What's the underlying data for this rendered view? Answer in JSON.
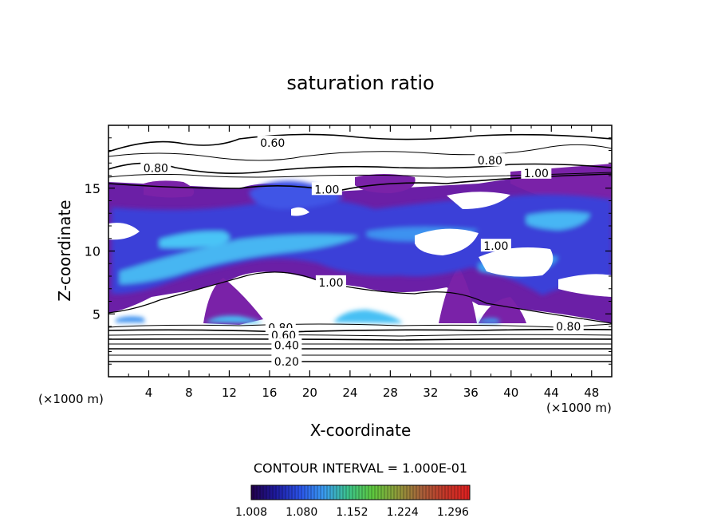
{
  "chart_data": {
    "type": "heatmap",
    "title": "saturation ratio",
    "xlabel": "X-coordinate",
    "ylabel": "Z-coordinate",
    "x_unit": "(×1000 m)",
    "y_unit": "(×1000 m)",
    "xlim": [
      0,
      50
    ],
    "ylim": [
      0,
      20
    ],
    "x_ticks": [
      4,
      8,
      12,
      16,
      20,
      24,
      28,
      32,
      36,
      40,
      44,
      48
    ],
    "y_ticks": [
      5,
      10,
      15
    ],
    "contour_interval_text": "CONTOUR INTERVAL = 1.000E-01",
    "contour_labels": [
      {
        "text": "0.60",
        "x": 16.3,
        "y": 18.6
      },
      {
        "text": "0.80",
        "x": 4.7,
        "y": 16.6
      },
      {
        "text": "0.80",
        "x": 37.9,
        "y": 17.2
      },
      {
        "text": "1.00",
        "x": 42.5,
        "y": 16.2
      },
      {
        "text": "1.00",
        "x": 21.7,
        "y": 14.9
      },
      {
        "text": "1.00",
        "x": 38.5,
        "y": 10.4
      },
      {
        "text": "1.00",
        "x": 22.1,
        "y": 7.5
      },
      {
        "text": "0.80",
        "x": 45.7,
        "y": 4.0
      },
      {
        "text": "0.80",
        "x": 17.1,
        "y": 3.9
      },
      {
        "text": "0.60",
        "x": 17.4,
        "y": 3.3
      },
      {
        "text": "0.40",
        "x": 17.7,
        "y": 2.5
      },
      {
        "text": "0.20",
        "x": 17.7,
        "y": 1.2
      }
    ],
    "colorbar": {
      "min": 1.008,
      "max": 1.32,
      "tick_labels": [
        "1.008",
        "1.080",
        "1.152",
        "1.224",
        "1.296"
      ],
      "colors": [
        "#22004a",
        "#1e1a9e",
        "#2a52e8",
        "#3a9cf0",
        "#3cc48a",
        "#5ec93e",
        "#8f9c3a",
        "#a8613a",
        "#c43628",
        "#e02020"
      ]
    },
    "supersaturated_fill_colors": [
      "#7a22a8",
      "#4a2bd4",
      "#2f52f0",
      "#3a8cf2",
      "#46c0f4"
    ],
    "grid": false,
    "legend": "none"
  }
}
